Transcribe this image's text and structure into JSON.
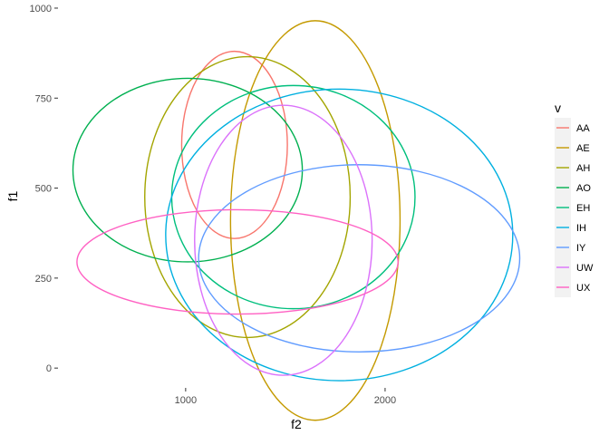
{
  "chart_data": {
    "type": "ellipse",
    "xlabel": "f2",
    "ylabel": "f1",
    "xlim": [
      360,
      2750
    ],
    "ylim": [
      -55,
      1010
    ],
    "x_ticks": [
      1000,
      2000
    ],
    "y_ticks": [
      0,
      250,
      500,
      750,
      1000
    ],
    "x_tick_labels": [
      "1000",
      "2000"
    ],
    "y_tick_labels": [
      "0",
      "250",
      "500",
      "750",
      "1000"
    ],
    "grid": false,
    "legend": {
      "title": "v",
      "position": "right"
    },
    "series": [
      {
        "name": "AA",
        "color": "#F8766D",
        "center": [
          1245,
          620
        ],
        "semi_axes": [
          265,
          260
        ]
      },
      {
        "name": "AE",
        "color": "#C49A00",
        "center": [
          1650,
          410
        ],
        "semi_axes": [
          425,
          555
        ]
      },
      {
        "name": "AH",
        "color": "#A3A500",
        "center": [
          1310,
          475
        ],
        "semi_axes": [
          515,
          390
        ]
      },
      {
        "name": "AO",
        "color": "#00B050",
        "center": [
          1010,
          550
        ],
        "semi_axes": [
          575,
          255
        ]
      },
      {
        "name": "EH",
        "color": "#00BF7D",
        "center": [
          1540,
          475
        ],
        "semi_axes": [
          610,
          310
        ]
      },
      {
        "name": "IH",
        "color": "#00B0E0",
        "center": [
          1770,
          370
        ],
        "semi_axes": [
          870,
          405
        ]
      },
      {
        "name": "IY",
        "color": "#619CFF",
        "center": [
          1870,
          305
        ],
        "semi_axes": [
          805,
          260
        ]
      },
      {
        "name": "UW",
        "color": "#DB72FB",
        "center": [
          1490,
          355
        ],
        "semi_axes": [
          445,
          375
        ]
      },
      {
        "name": "UX",
        "color": "#FF61C3",
        "center": [
          1260,
          295
        ],
        "semi_axes": [
          805,
          145
        ]
      }
    ]
  }
}
